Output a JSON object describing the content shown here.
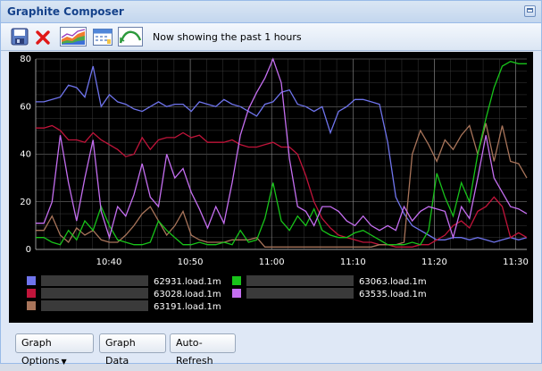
{
  "window": {
    "title": "Graphite Composer"
  },
  "toolbar": {
    "status": "Now showing the past 1 hours",
    "buttons": [
      {
        "name": "save-icon"
      },
      {
        "name": "delete-icon"
      },
      {
        "name": "graph-area-icon"
      },
      {
        "name": "calendar-icon"
      },
      {
        "name": "refresh-icon"
      }
    ]
  },
  "footer": {
    "graph_options": "Graph Options",
    "graph_data": "Graph Data",
    "auto_refresh": "Auto-Refresh"
  },
  "chart_data": {
    "type": "line",
    "background": "#000000",
    "ylim": [
      0,
      80
    ],
    "yticks": [
      "0",
      "20",
      "40",
      "60",
      "80"
    ],
    "xticks": [
      "10:40",
      "10:50",
      "11:00",
      "11:10",
      "11:20",
      "11:30"
    ],
    "grid": true,
    "legend_position": "bottom",
    "series": [
      {
        "name": "62931.load.1m",
        "color": "#6f74ec",
        "values": [
          62,
          62,
          63,
          64,
          69,
          68,
          64,
          77,
          60,
          65,
          62,
          61,
          59,
          58,
          60,
          62,
          60,
          61,
          61,
          58,
          62,
          61,
          60,
          63,
          61,
          60,
          58,
          56,
          61,
          62,
          66,
          67,
          61,
          60,
          58,
          60,
          49,
          58,
          60,
          63,
          63,
          62,
          61,
          45,
          22,
          15,
          10,
          8,
          6,
          4,
          4,
          5,
          5,
          4,
          5,
          4,
          3,
          4,
          5,
          4,
          5
        ]
      },
      {
        "name": "63028.load.1m",
        "color": "#c0143a",
        "values": [
          51,
          51,
          52,
          50,
          46,
          46,
          45,
          49,
          46,
          44,
          42,
          39,
          40,
          47,
          42,
          46,
          47,
          47,
          49,
          47,
          48,
          45,
          45,
          45,
          46,
          44,
          43,
          43,
          44,
          45,
          43,
          43,
          40,
          31,
          20,
          13,
          9,
          6,
          5,
          4,
          3,
          3,
          2,
          2,
          1,
          1,
          1,
          2,
          2,
          4,
          6,
          10,
          12,
          9,
          16,
          18,
          22,
          18,
          5,
          7,
          5
        ]
      },
      {
        "name": "63191.load.1m",
        "color": "#a8745a",
        "values": [
          8,
          8,
          14,
          6,
          3,
          9,
          6,
          8,
          4,
          3,
          3,
          6,
          10,
          15,
          18,
          12,
          6,
          10,
          16,
          6,
          4,
          3,
          3,
          3,
          4,
          4,
          4,
          5,
          1,
          1,
          1,
          1,
          1,
          1,
          1,
          1,
          1,
          1,
          1,
          1,
          1,
          1,
          2,
          2,
          2,
          3,
          40,
          50,
          44,
          37,
          46,
          42,
          48,
          52,
          40,
          53,
          37,
          52,
          37,
          36,
          30
        ]
      },
      {
        "name": "63063.load.1m",
        "color": "#18c31a",
        "values": [
          5,
          5,
          3,
          2,
          8,
          4,
          12,
          8,
          18,
          10,
          4,
          3,
          2,
          2,
          3,
          12,
          8,
          5,
          2,
          2,
          3,
          2,
          2,
          3,
          2,
          8,
          3,
          4,
          13,
          28,
          12,
          8,
          14,
          10,
          17,
          8,
          6,
          5,
          5,
          7,
          8,
          6,
          4,
          2,
          2,
          2,
          3,
          2,
          8,
          32,
          22,
          14,
          28,
          20,
          40,
          55,
          68,
          77,
          79,
          78,
          78
        ]
      },
      {
        "name": "63535.load.1m",
        "color": "#c46ef0",
        "values": [
          11,
          11,
          20,
          48,
          28,
          12,
          30,
          46,
          16,
          5,
          18,
          14,
          23,
          36,
          22,
          18,
          40,
          30,
          34,
          24,
          17,
          9,
          18,
          11,
          28,
          48,
          59,
          66,
          72,
          80,
          70,
          38,
          18,
          16,
          10,
          18,
          18,
          16,
          12,
          10,
          14,
          10,
          8,
          10,
          8,
          18,
          12,
          16,
          18,
          17,
          16,
          5,
          18,
          13,
          30,
          48,
          30,
          24,
          18,
          17,
          15
        ]
      }
    ]
  }
}
